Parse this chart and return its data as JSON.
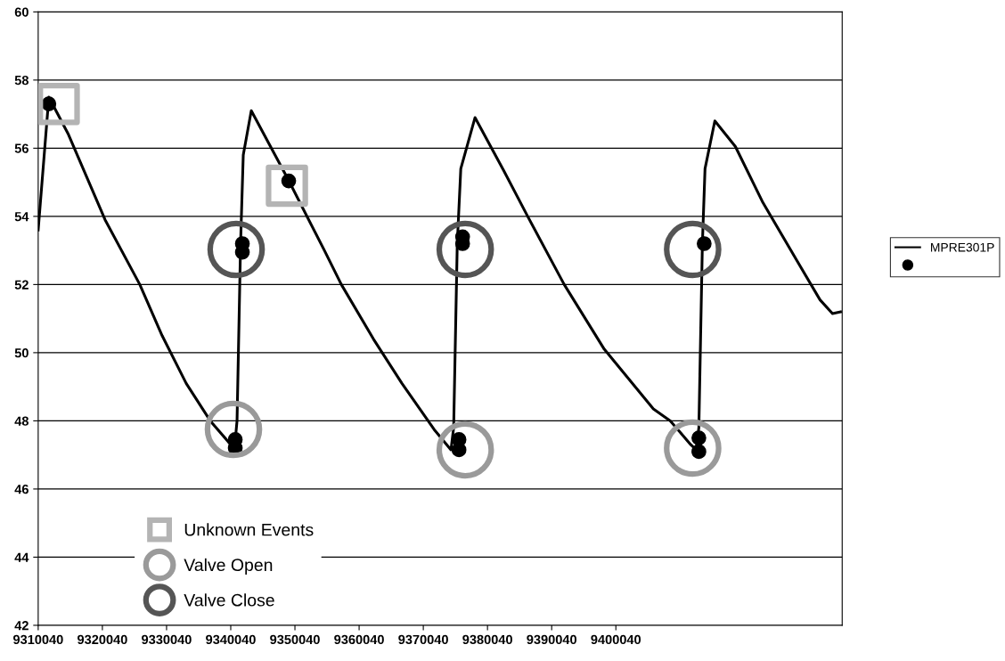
{
  "chart_data": {
    "type": "line",
    "xlim": [
      9310040,
      9435300
    ],
    "xticks": [
      9310040,
      9320040,
      9330040,
      9340040,
      9350040,
      9360040,
      9370040,
      9380040,
      9390040,
      9400040
    ],
    "ylim": [
      42,
      60
    ],
    "yticks": [
      42,
      44,
      46,
      48,
      50,
      52,
      54,
      56,
      58,
      60
    ],
    "grid": "y",
    "legend": "right",
    "series": [
      {
        "name": "MPRE301P",
        "color": "#000000",
        "marker": "none",
        "line_style": "solid",
        "x": [
          9310040,
          9311700,
          9314760,
          9320460,
          9325870,
          9329350,
          9333100,
          9336850,
          9340040,
          9340600,
          9341020,
          9341570,
          9341990,
          9343240,
          9348930,
          9354630,
          9357270,
          9362270,
          9366710,
          9371710,
          9374350,
          9374770,
          9375330,
          9375880,
          9378100,
          9382550,
          9386300,
          9391990,
          9398240,
          9405880,
          9408520,
          9411710,
          9412550,
          9412970,
          9413520,
          9413930,
          9415460,
          9418660,
          9422960,
          9428100,
          9431850,
          9433790,
          9435040
        ],
        "values": [
          53.6,
          57.5,
          56.4,
          53.9,
          52.0,
          50.5,
          49.1,
          48.0,
          47.3,
          47.15,
          48.0,
          53.2,
          55.8,
          57.1,
          55.1,
          53.0,
          52.0,
          50.4,
          49.1,
          47.75,
          47.15,
          47.8,
          53.2,
          55.4,
          56.9,
          55.35,
          54.0,
          52.0,
          50.1,
          48.35,
          48.0,
          47.3,
          47.15,
          47.8,
          53.2,
          55.4,
          56.8,
          56.05,
          54.4,
          52.75,
          51.55,
          51.15,
          51.2
        ]
      },
      {
        "type": "scatter",
        "color": "#000000",
        "marker": "circle",
        "x": [
          9311700,
          9349070,
          9341850,
          9341850,
          9340740,
          9340740,
          9376160,
          9376160,
          9375600,
          9375600,
          9413800,
          9412970,
          9412970
        ],
        "values": [
          57.3,
          55.04,
          53.2,
          52.95,
          47.45,
          47.2,
          53.4,
          53.2,
          47.45,
          47.15,
          53.2,
          47.5,
          47.1
        ]
      },
      {
        "name": "Unknown Events",
        "type": "scatter",
        "color": "#b4b4b4",
        "marker": "square",
        "x": [
          9313235,
          9348790
        ],
        "values": [
          57.3,
          54.9
        ]
      },
      {
        "name": "Valve Open",
        "type": "scatter",
        "color": "#9a9a9a",
        "marker": "circle",
        "x": [
          9340460,
          9376570,
          9412000
        ],
        "values": [
          47.75,
          47.15,
          47.2
        ]
      },
      {
        "name": "Valve Close",
        "type": "scatter",
        "color": "#555555",
        "marker": "circle",
        "x": [
          9340880,
          9376570,
          9412000
        ],
        "values": [
          53.03,
          53.03,
          53.03
        ]
      }
    ]
  }
}
